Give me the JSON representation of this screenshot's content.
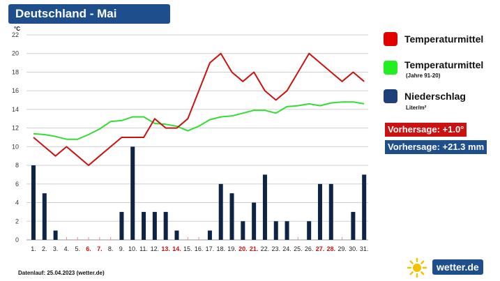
{
  "title": "Deutschland - Mai",
  "chart_data": {
    "type": "bar+line",
    "y_unit": "°C",
    "ylim": [
      0,
      22
    ],
    "yticks": [
      0,
      2,
      4,
      6,
      8,
      10,
      12,
      14,
      16,
      18,
      20,
      22
    ],
    "categories": [
      "1.",
      "2.",
      "3.",
      "4.",
      "5.",
      "6.",
      "7.",
      "8.",
      "9.",
      "10.",
      "11.",
      "12.",
      "13.",
      "14.",
      "15.",
      "16.",
      "17.",
      "18.",
      "19.",
      "20.",
      "21.",
      "22.",
      "23.",
      "24.",
      "25.",
      "26.",
      "27.",
      "28.",
      "29.",
      "30.",
      "31."
    ],
    "weekend_days": [
      "6.",
      "7.",
      "13.",
      "14.",
      "20.",
      "21.",
      "27.",
      "28."
    ],
    "grid": true,
    "series": [
      {
        "name": "Temperaturmittel",
        "kind": "line",
        "color": "#cc1111",
        "values": [
          11,
          10,
          9,
          10,
          9,
          8,
          9,
          10,
          11,
          11,
          11,
          13,
          12,
          12,
          13,
          16,
          19,
          20,
          18,
          17,
          18,
          16,
          15,
          16,
          18,
          20,
          19,
          18,
          17,
          18,
          17
        ]
      },
      {
        "name": "Temperaturmittel (Jahre 91-20)",
        "kind": "line",
        "color": "#33dd33",
        "values": [
          11.4,
          11.3,
          11.1,
          10.8,
          10.8,
          11.3,
          11.9,
          12.7,
          12.8,
          13.2,
          13.2,
          12.5,
          12.4,
          12.2,
          11.7,
          12.2,
          12.9,
          13.2,
          13.3,
          13.6,
          13.9,
          13.9,
          13.6,
          14.3,
          14.4,
          14.6,
          14.4,
          14.7,
          14.8,
          14.8,
          14.6
        ]
      },
      {
        "name": "Niederschlag",
        "kind": "bar",
        "color": "#0d2447",
        "values": [
          8,
          5,
          1,
          0,
          0,
          0,
          0,
          0,
          3,
          10,
          3,
          3,
          3,
          1,
          0,
          0,
          1,
          6,
          5,
          2,
          4,
          7,
          2,
          2,
          0,
          2,
          6,
          6,
          0,
          3,
          7
        ]
      }
    ]
  },
  "legend": {
    "temp": {
      "label": "Temperaturmittel",
      "color": "#e00000"
    },
    "norm": {
      "label": "Temperaturmittel",
      "sub": "(Jahre 91-20)",
      "color": "#22ee22"
    },
    "precip": {
      "label": "Niederschlag",
      "sub": "Liter/m²",
      "color": "#1f3f7a"
    }
  },
  "forecast_temp": {
    "text": "Vorhersage: +1.0°",
    "color": "#cc1111"
  },
  "forecast_precip": {
    "text": "Vorhersage: +21.3 mm",
    "color": "#1f4e8c"
  },
  "footer": "Datenlauf: 25.04.2023 (wetter.de)",
  "logo": {
    "text": "wetter.de",
    "icon": "sun-icon"
  }
}
